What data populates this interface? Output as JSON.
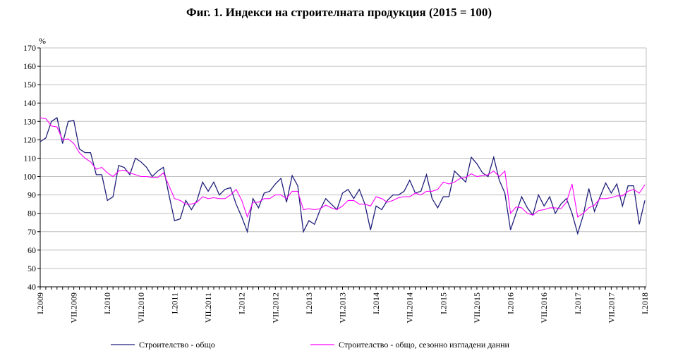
{
  "chart_data": {
    "type": "line",
    "title": "Фиг. 1. Индекси на строителната продукция (2015 = 100)",
    "ylabel": "%",
    "xlabel": "",
    "ylim": [
      40,
      170
    ],
    "yticks": [
      40,
      50,
      60,
      70,
      80,
      90,
      100,
      110,
      120,
      130,
      140,
      150,
      160,
      170
    ],
    "grid": "horizontal",
    "legend_position": "bottom",
    "x_tick_labels": [
      "I.2009",
      "VII.2009",
      "I.2010",
      "VII.2010",
      "I.2011",
      "VII.2011",
      "I.2012",
      "VII.2012",
      "I.2013",
      "VII.2013",
      "I.2014",
      "VII.2014",
      "I.2015",
      "VII.2015",
      "I.2016",
      "VII.2016",
      "I.2017",
      "VII.2017",
      "I.2018"
    ],
    "x_start": "I.2009",
    "x_end": "I.2018",
    "frequency": "monthly",
    "series": [
      {
        "name": "Строителство - общо",
        "color": "#1F1F7A",
        "values": [
          119,
          121,
          130,
          132,
          118,
          130,
          130.5,
          115,
          113,
          113,
          101,
          101,
          87,
          89,
          106,
          105,
          101,
          110,
          108,
          105,
          100,
          103,
          105,
          90,
          76,
          77,
          87,
          82,
          87,
          97,
          92,
          97,
          90,
          93,
          94,
          85,
          78,
          70,
          88,
          83,
          91,
          92,
          96,
          99,
          86,
          100.5,
          95,
          70,
          76,
          74,
          82,
          88,
          85,
          82,
          91,
          93,
          88,
          93,
          85,
          71,
          84,
          82,
          87,
          90,
          90,
          92,
          98,
          91,
          92,
          101,
          88,
          83,
          89,
          89,
          103,
          100,
          97,
          110.5,
          107,
          102,
          100,
          110.5,
          98,
          91,
          71,
          80,
          89,
          83,
          79,
          90,
          84,
          89,
          80,
          85,
          88,
          80,
          69,
          79,
          93.5,
          81,
          89,
          96.5,
          91,
          96,
          84,
          95,
          95,
          74,
          87
        ]
      },
      {
        "name": "Строителство - общо, сезонно изгладени данни",
        "color": "#FF00FF",
        "values": [
          132,
          131.5,
          127.5,
          127,
          120,
          120.5,
          118,
          113,
          110,
          108,
          104,
          105,
          102,
          100,
          103,
          103.5,
          102,
          101,
          100,
          100,
          99.5,
          99.5,
          102,
          95,
          88,
          87,
          85,
          85,
          86,
          89,
          88,
          88.5,
          88,
          88,
          90,
          93,
          87,
          78,
          86,
          86,
          88,
          88,
          90,
          90,
          88,
          92,
          92,
          82,
          82.5,
          82,
          82.5,
          84.5,
          83,
          82,
          84,
          87,
          87,
          85,
          85,
          84,
          89,
          88,
          86,
          87,
          88.5,
          89,
          89,
          91,
          90,
          92,
          92,
          93,
          97,
          96,
          97,
          99,
          99.5,
          101.5,
          100,
          100.5,
          101,
          103,
          100,
          103,
          80,
          83.5,
          83,
          80,
          79,
          81.5,
          82,
          83,
          83,
          82.5,
          86,
          96,
          78,
          80,
          83,
          84.5,
          88,
          88,
          88.5,
          89.5,
          89.5,
          92,
          93,
          91,
          95.5
        ]
      }
    ]
  }
}
